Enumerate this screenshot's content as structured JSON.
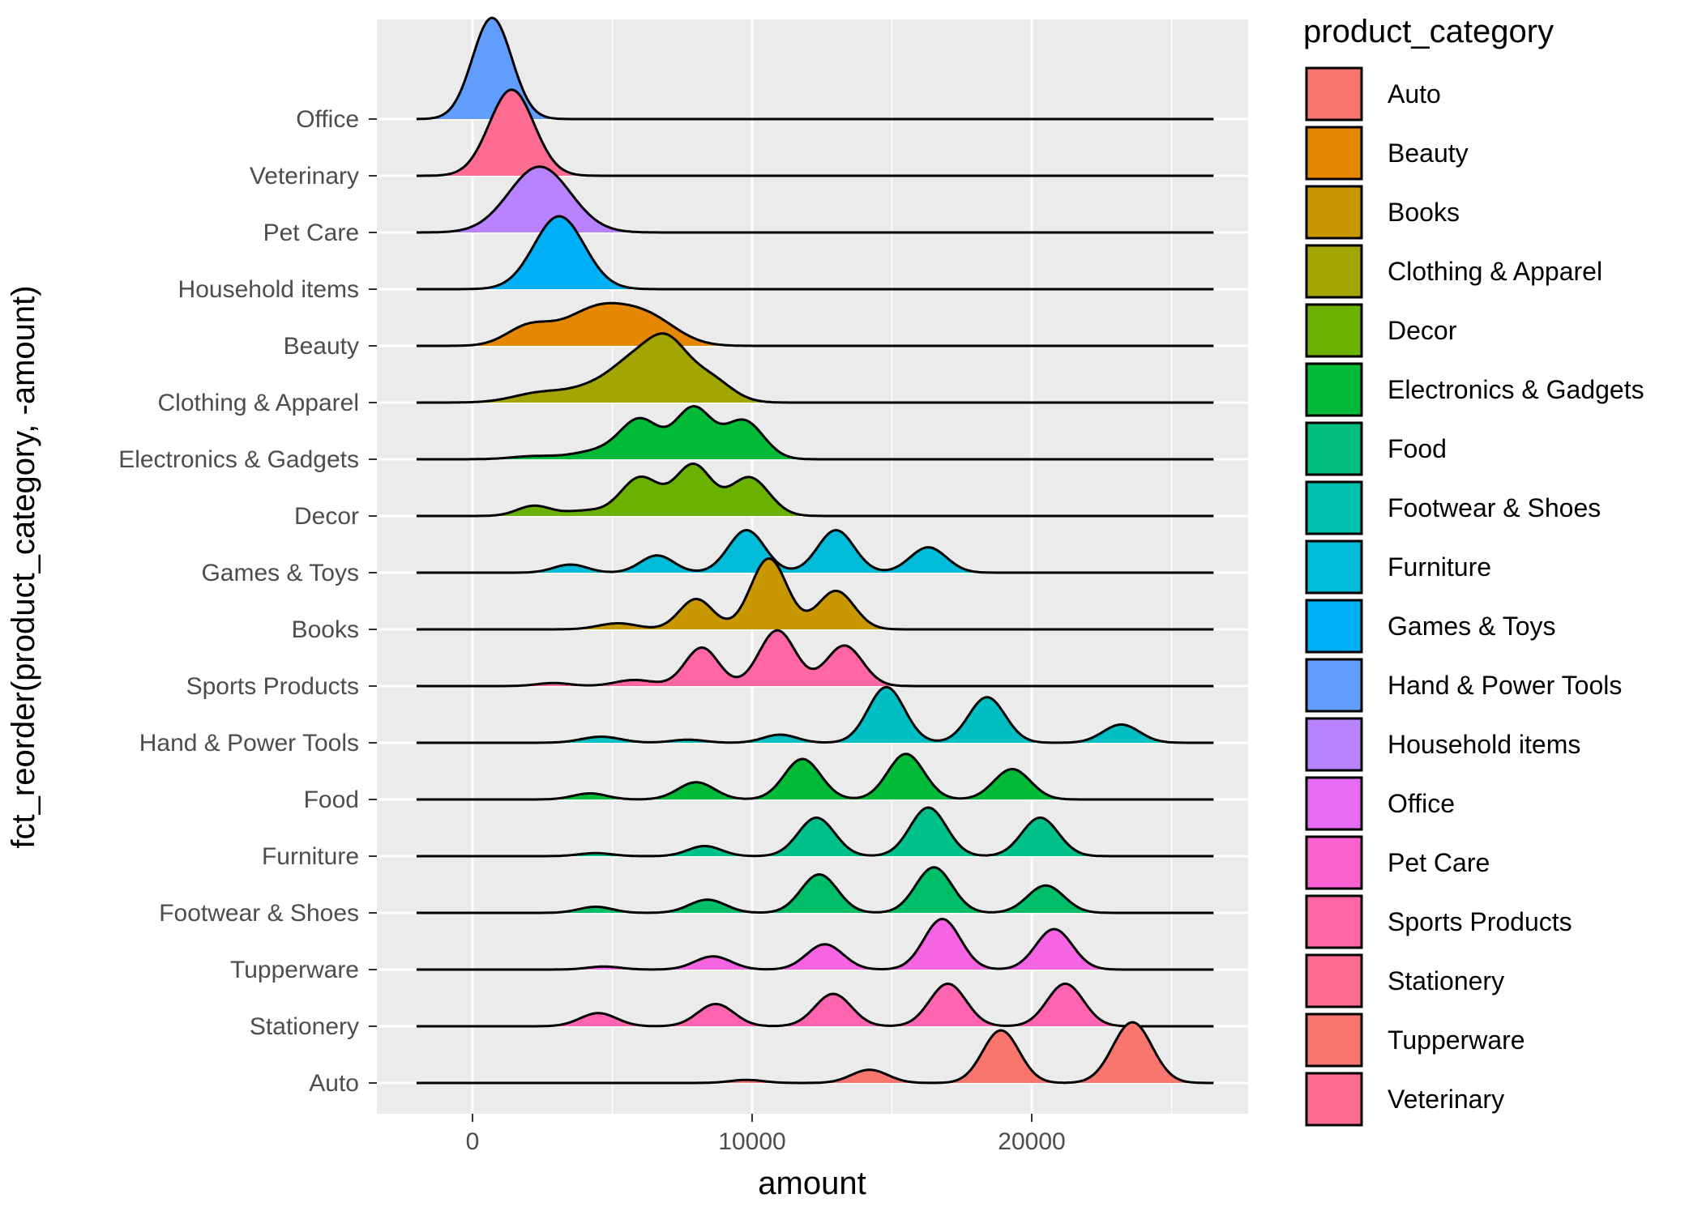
{
  "chart_data": {
    "type": "ridgeline",
    "xlabel": "amount",
    "ylabel": "fct_reorder(product_category, -amount)",
    "xlim": [
      -3500,
      27500
    ],
    "x_ticks": [
      0,
      10000,
      20000
    ],
    "x_tick_labels": [
      "0",
      "10000",
      "20000"
    ],
    "density_range": [
      -2000,
      26500
    ],
    "grid": true,
    "legend_position": "right",
    "legend_title": "product_category",
    "legend": [
      {
        "name": "Auto",
        "color": "#F8766D"
      },
      {
        "name": "Beauty",
        "color": "#E58700"
      },
      {
        "name": "Books",
        "color": "#C99800"
      },
      {
        "name": "Clothing & Apparel",
        "color": "#A3A500"
      },
      {
        "name": "Decor",
        "color": "#6BB100"
      },
      {
        "name": "Electronics & Gadgets",
        "color": "#00BA38"
      },
      {
        "name": "Food",
        "color": "#00BF7D"
      },
      {
        "name": "Footwear & Shoes",
        "color": "#00C0AF"
      },
      {
        "name": "Furniture",
        "color": "#00BCD8"
      },
      {
        "name": "Games & Toys",
        "color": "#00B0F6"
      },
      {
        "name": "Hand & Power Tools",
        "color": "#619CFF"
      },
      {
        "name": "Household items",
        "color": "#B983FF"
      },
      {
        "name": "Office",
        "color": "#E76BF3"
      },
      {
        "name": "Pet Care",
        "color": "#FD61D1"
      },
      {
        "name": "Sports Products",
        "color": "#FF67A4"
      },
      {
        "name": "Stationery",
        "color": "#FF6C91"
      },
      {
        "name": "Tupperware",
        "color": "#F8766D"
      },
      {
        "name": "Veterinary",
        "color": "#FF6C91"
      }
    ],
    "series": [
      {
        "name": "Office",
        "color": "#619CFF",
        "peaks": [
          [
            700,
            1.0,
            700
          ]
        ]
      },
      {
        "name": "Veterinary",
        "color": "#FF6C91",
        "peaks": [
          [
            1400,
            0.85,
            800
          ]
        ]
      },
      {
        "name": "Pet Care",
        "color": "#B983FF",
        "peaks": [
          [
            2400,
            0.65,
            1100
          ]
        ]
      },
      {
        "name": "Household items",
        "color": "#00B0F6",
        "peaks": [
          [
            3100,
            0.72,
            900
          ]
        ]
      },
      {
        "name": "Beauty",
        "color": "#E58700",
        "peaks": [
          [
            2000,
            0.18,
            800
          ],
          [
            4500,
            0.37,
            1200
          ],
          [
            6400,
            0.22,
            1000
          ]
        ]
      },
      {
        "name": "Clothing & Apparel",
        "color": "#A3A500",
        "peaks": [
          [
            2500,
            0.1,
            1000
          ],
          [
            4200,
            0.1,
            800
          ],
          [
            5800,
            0.4,
            900
          ],
          [
            7000,
            0.45,
            700
          ],
          [
            8400,
            0.25,
            800
          ]
        ]
      },
      {
        "name": "Electronics & Gadgets",
        "color": "#00BA38",
        "peaks": [
          [
            2200,
            0.03,
            800
          ],
          [
            4500,
            0.08,
            900
          ],
          [
            6000,
            0.38,
            700
          ],
          [
            7900,
            0.5,
            650
          ],
          [
            9700,
            0.38,
            700
          ]
        ]
      },
      {
        "name": "Decor",
        "color": "#6BB100",
        "peaks": [
          [
            2200,
            0.1,
            600
          ],
          [
            4000,
            0.05,
            700
          ],
          [
            6000,
            0.38,
            700
          ],
          [
            7900,
            0.5,
            650
          ],
          [
            9900,
            0.38,
            700
          ]
        ]
      },
      {
        "name": "Games & Toys",
        "color": "#00BCD8",
        "peaks": [
          [
            3500,
            0.08,
            600
          ],
          [
            6600,
            0.17,
            600
          ],
          [
            9800,
            0.42,
            650
          ],
          [
            13000,
            0.42,
            650
          ],
          [
            16300,
            0.25,
            650
          ]
        ]
      },
      {
        "name": "Books",
        "color": "#C99800",
        "peaks": [
          [
            5200,
            0.06,
            700
          ],
          [
            8000,
            0.3,
            600
          ],
          [
            10600,
            0.7,
            650
          ],
          [
            13000,
            0.38,
            650
          ]
        ]
      },
      {
        "name": "Sports Products",
        "color": "#FF67A4",
        "peaks": [
          [
            2900,
            0.03,
            600
          ],
          [
            5800,
            0.06,
            700
          ],
          [
            8200,
            0.38,
            600
          ],
          [
            10900,
            0.55,
            650
          ],
          [
            13300,
            0.4,
            650
          ]
        ]
      },
      {
        "name": "Hand & Power Tools",
        "color": "#00BFC4",
        "peaks": [
          [
            4600,
            0.06,
            700
          ],
          [
            7700,
            0.03,
            600
          ],
          [
            11000,
            0.08,
            600
          ],
          [
            14800,
            0.55,
            650
          ],
          [
            18400,
            0.45,
            650
          ],
          [
            23200,
            0.18,
            650
          ]
        ]
      },
      {
        "name": "Food",
        "color": "#00BA38",
        "peaks": [
          [
            4200,
            0.06,
            600
          ],
          [
            8000,
            0.17,
            650
          ],
          [
            11800,
            0.4,
            650
          ],
          [
            15500,
            0.45,
            650
          ],
          [
            19300,
            0.3,
            650
          ]
        ]
      },
      {
        "name": "Furniture",
        "color": "#00C08B",
        "peaks": [
          [
            4400,
            0.03,
            600
          ],
          [
            8300,
            0.1,
            600
          ],
          [
            12300,
            0.38,
            650
          ],
          [
            16300,
            0.48,
            650
          ],
          [
            20300,
            0.38,
            650
          ]
        ]
      },
      {
        "name": "Footwear & Shoes",
        "color": "#00BE67",
        "peaks": [
          [
            4400,
            0.06,
            600
          ],
          [
            8400,
            0.13,
            650
          ],
          [
            12400,
            0.38,
            650
          ],
          [
            16500,
            0.45,
            650
          ],
          [
            20500,
            0.27,
            650
          ]
        ]
      },
      {
        "name": "Tupperware",
        "color": "#F564E3",
        "peaks": [
          [
            4700,
            0.03,
            600
          ],
          [
            8600,
            0.13,
            650
          ],
          [
            12600,
            0.25,
            650
          ],
          [
            16800,
            0.5,
            650
          ],
          [
            20800,
            0.4,
            650
          ]
        ]
      },
      {
        "name": "Stationery",
        "color": "#FF64B0",
        "peaks": [
          [
            4500,
            0.13,
            650
          ],
          [
            8700,
            0.22,
            650
          ],
          [
            12900,
            0.32,
            650
          ],
          [
            17000,
            0.42,
            650
          ],
          [
            21200,
            0.42,
            650
          ]
        ]
      },
      {
        "name": "Auto",
        "color": "#F8766D",
        "peaks": [
          [
            9800,
            0.03,
            600
          ],
          [
            14200,
            0.13,
            650
          ],
          [
            18900,
            0.52,
            650
          ],
          [
            23600,
            0.6,
            700
          ]
        ]
      }
    ]
  }
}
